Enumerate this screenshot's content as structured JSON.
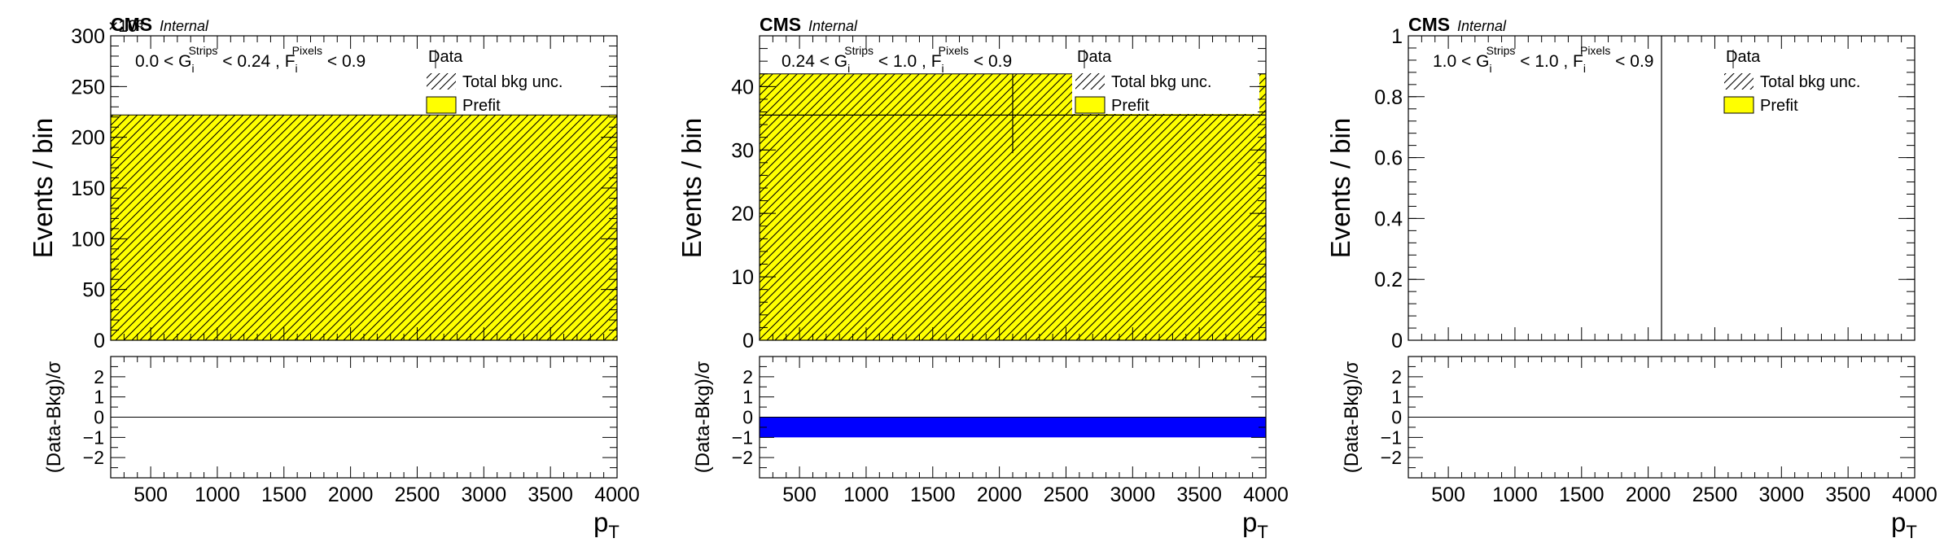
{
  "chart_data": [
    {
      "type": "bar",
      "experiment": "CMS",
      "status": "Internal",
      "exponent": "×10³",
      "region": {
        "pre": "0.0 < G",
        "g_sub": "i",
        "g_sup": "Strips",
        "mid": " < 0.24 , F",
        "f_sub": "i",
        "f_sup": "Pixels",
        "post": " < 0.9"
      },
      "xlabel": "p",
      "xlabel_sub": "T",
      "ylabel": "Events / bin",
      "ratio_ylabel": "(Data-Bkg)/σ",
      "xlim": [
        200,
        4000
      ],
      "ylim": [
        0,
        300
      ],
      "yticks": [
        0,
        50,
        100,
        150,
        200,
        250,
        300
      ],
      "xticks": [
        500,
        1000,
        1500,
        2000,
        2500,
        3000,
        3500,
        4000
      ],
      "ratio_ylim": [
        -3,
        3
      ],
      "ratio_yticks": [
        -2,
        -1,
        0,
        1,
        2
      ],
      "legend": [
        "Data",
        "Total bkg unc.",
        "Prefit"
      ],
      "prefit_bins": [
        {
          "x": [
            200,
            4000
          ],
          "y": 222
        }
      ],
      "data_points": [],
      "pulls": [],
      "colors": {
        "prefit": "#ffff00",
        "pull": "#0000ff"
      }
    },
    {
      "type": "bar",
      "experiment": "CMS",
      "status": "Internal",
      "exponent": "",
      "region": {
        "pre": "0.24 < G",
        "g_sub": "i",
        "g_sup": "Strips",
        "mid": " < 1.0 , F",
        "f_sub": "i",
        "f_sup": "Pixels",
        "post": " < 0.9"
      },
      "xlabel": "p",
      "xlabel_sub": "T",
      "ylabel": "Events / bin",
      "ratio_ylabel": "(Data-Bkg)/σ",
      "xlim": [
        200,
        4000
      ],
      "ylim": [
        0,
        48
      ],
      "yticks": [
        0,
        10,
        20,
        30,
        40
      ],
      "xticks": [
        500,
        1000,
        1500,
        2000,
        2500,
        3000,
        3500,
        4000
      ],
      "ratio_ylim": [
        -3,
        3
      ],
      "ratio_yticks": [
        -2,
        -1,
        0,
        1,
        2
      ],
      "legend": [
        "Data",
        "Total bkg unc.",
        "Prefit"
      ],
      "prefit_bins": [
        {
          "x": [
            200,
            4000
          ],
          "y": 42
        }
      ],
      "data_points": [
        {
          "x": 2100,
          "xerr": [
            200,
            4000
          ],
          "y": 35.5,
          "yerr": [
            29.5,
            42
          ]
        }
      ],
      "pulls": [
        {
          "x": [
            200,
            4000
          ],
          "y": [
            -1,
            0
          ]
        }
      ],
      "colors": {
        "prefit": "#ffff00",
        "pull": "#0000ff"
      }
    },
    {
      "type": "bar",
      "experiment": "CMS",
      "status": "Internal",
      "exponent": "",
      "region": {
        "pre": "1.0 < G",
        "g_sub": "i",
        "g_sup": "Strips",
        "mid": " < 1.0 , F",
        "f_sub": "i",
        "f_sup": "Pixels",
        "post": " < 0.9"
      },
      "xlabel": "p",
      "xlabel_sub": "T",
      "ylabel": "Events / bin",
      "ratio_ylabel": "(Data-Bkg)/σ",
      "xlim": [
        200,
        4000
      ],
      "ylim": [
        0,
        1
      ],
      "yticks": [
        0,
        0.2,
        0.4,
        0.6,
        0.8,
        1
      ],
      "xticks": [
        500,
        1000,
        1500,
        2000,
        2500,
        3000,
        3500,
        4000
      ],
      "ratio_ylim": [
        -3,
        3
      ],
      "ratio_yticks": [
        -2,
        -1,
        0,
        1,
        2
      ],
      "legend": [
        "Data",
        "Total bkg unc.",
        "Prefit"
      ],
      "prefit_bins": [],
      "data_points": [
        {
          "x": 2100,
          "xerr": null,
          "y": 0,
          "yerr": [
            0,
            1
          ]
        }
      ],
      "pulls": [],
      "colors": {
        "prefit": "#ffff00",
        "pull": "#0000ff"
      }
    }
  ]
}
